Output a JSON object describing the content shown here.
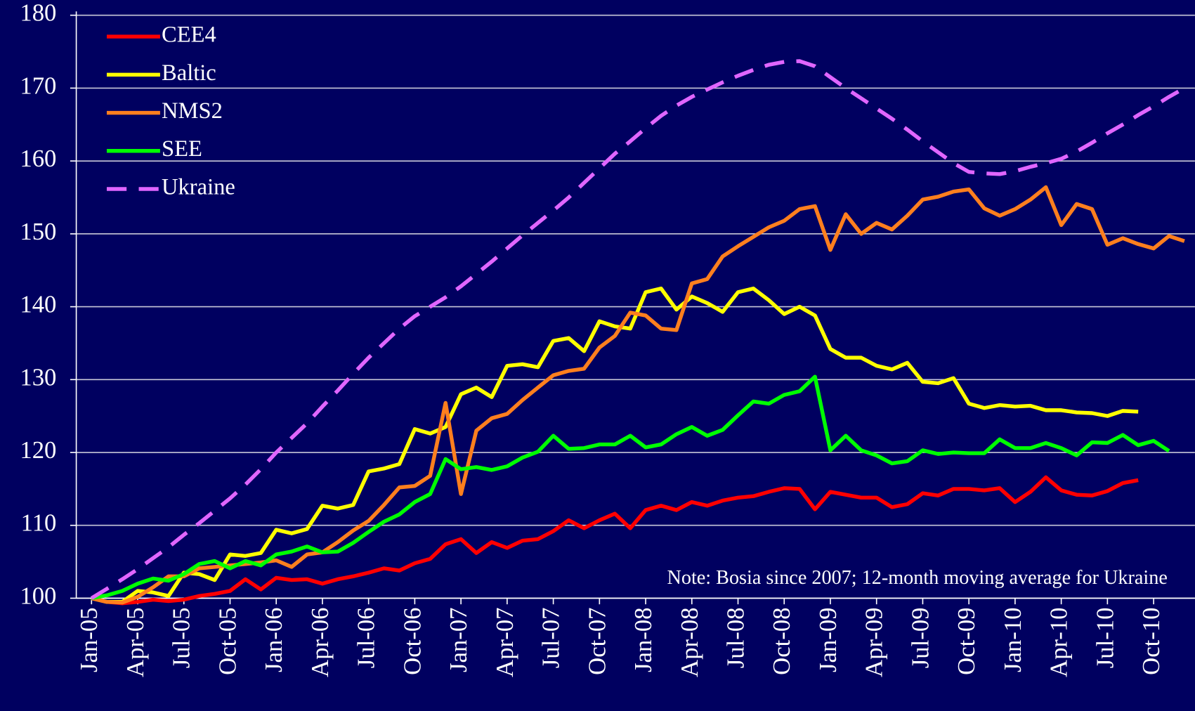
{
  "chart_data": {
    "type": "line",
    "note": "Note: Bosia since 2007; 12-month moving average for Ukraine",
    "categories": [
      "Jan-05",
      null,
      null,
      "Apr-05",
      null,
      null,
      "Jul-05",
      null,
      null,
      "Oct-05",
      null,
      null,
      "Jan-06",
      null,
      null,
      "Apr-06",
      null,
      null,
      "Jul-06",
      null,
      null,
      "Oct-06",
      null,
      null,
      "Jan-07",
      null,
      null,
      "Apr-07",
      null,
      null,
      "Jul-07",
      null,
      null,
      "Oct-07",
      null,
      null,
      "Jan-08",
      null,
      null,
      "Apr-08",
      null,
      null,
      "Jul-08",
      null,
      null,
      "Oct-08",
      null,
      null,
      "Jan-09",
      null,
      null,
      "Apr-09",
      null,
      null,
      "Jul-09",
      null,
      null,
      "Oct-09",
      null,
      null,
      "Jan-10",
      null,
      null,
      "Apr-10",
      null,
      null,
      "Jul-10",
      null,
      null,
      "Oct-10",
      null,
      null
    ],
    "ylim": [
      100,
      180
    ],
    "yticks": [
      100,
      110,
      120,
      130,
      140,
      150,
      160,
      170,
      180
    ],
    "grid": true,
    "legend": "upper left",
    "series": [
      {
        "name": "CEE4",
        "color": "#ff0000",
        "style": "solid",
        "values": [
          100,
          99.5,
          99.3,
          99.5,
          99.8,
          99.6,
          99.8,
          100.3,
          100.6,
          101,
          102.6,
          101.2,
          102.8,
          102.5,
          102.6,
          102,
          102.6,
          103,
          103.5,
          104.1,
          103.8,
          104.8,
          105.4,
          107.4,
          108.1,
          106.2,
          107.7,
          106.9,
          107.9,
          108.1,
          109.2,
          110.7,
          109.6,
          110.7,
          111.6,
          109.6,
          112.1,
          112.7,
          112.1,
          113.2,
          112.7,
          113.4,
          113.8,
          114,
          114.6,
          115.1,
          115,
          112.2,
          114.6,
          114.2,
          113.8,
          113.8,
          112.5,
          112.9,
          114.4,
          114.1,
          115,
          115,
          114.8,
          115.1,
          113.2,
          114.6,
          116.6,
          114.8,
          114.2,
          114.1,
          114.7,
          115.8,
          116.2,
          null,
          null,
          null
        ]
      },
      {
        "name": "Baltic",
        "color": "#ffff00",
        "style": "solid",
        "values": [
          100,
          99.5,
          99.5,
          101,
          100.8,
          100.3,
          103.5,
          103.3,
          102.5,
          106,
          105.8,
          106.2,
          109.4,
          108.9,
          109.5,
          112.7,
          112.3,
          112.8,
          117.4,
          117.8,
          118.4,
          123.2,
          122.6,
          123.5,
          128,
          128.9,
          127.6,
          131.9,
          132.1,
          131.7,
          135.3,
          135.7,
          133.9,
          138,
          137.3,
          137,
          142,
          142.5,
          139.6,
          141.4,
          140.5,
          139.3,
          142,
          142.5,
          140.9,
          139,
          140,
          138.8,
          134.2,
          133,
          133,
          131.9,
          131.4,
          132.3,
          129.7,
          129.5,
          130.2,
          126.7,
          126.1,
          126.5,
          126.3,
          126.4,
          125.8,
          125.8,
          125.5,
          125.4,
          125,
          125.7,
          125.6,
          null,
          null,
          null
        ]
      },
      {
        "name": "NMS2",
        "color": "#ff7f1e",
        "style": "solid",
        "values": [
          100,
          99.5,
          99.4,
          100.2,
          101.5,
          103,
          103,
          104.1,
          104.3,
          104.5,
          104.7,
          104.9,
          105.2,
          104.3,
          106,
          106.3,
          107.7,
          109.3,
          110.6,
          112.8,
          115.2,
          115.4,
          116.8,
          126.8,
          114.3,
          123,
          124.7,
          125.3,
          127.2,
          128.9,
          130.6,
          131.2,
          131.5,
          134.4,
          136,
          139.2,
          138.8,
          137,
          136.8,
          143.2,
          143.8,
          146.9,
          148.3,
          149.6,
          150.9,
          151.8,
          153.4,
          153.8,
          147.8,
          152.7,
          150,
          151.5,
          150.6,
          152.5,
          154.7,
          155.1,
          155.8,
          156.1,
          153.5,
          152.5,
          153.4,
          154.7,
          156.4,
          151.2,
          154.1,
          153.4,
          148.5,
          149.4,
          148.6,
          148,
          149.7,
          149
        ]
      },
      {
        "name": "SEE",
        "color": "#00ff00",
        "style": "solid",
        "values": [
          100,
          100.4,
          101,
          102,
          102.7,
          102.4,
          103.3,
          104.7,
          105.1,
          104.1,
          105.1,
          104.5,
          106,
          106.4,
          107.1,
          106.3,
          106.4,
          107.6,
          109.1,
          110.5,
          111.5,
          113.2,
          114.3,
          119.1,
          117.7,
          118,
          117.6,
          118.1,
          119.3,
          120.1,
          122.3,
          120.5,
          120.6,
          121.1,
          121.1,
          122.3,
          120.7,
          121.1,
          122.5,
          123.5,
          122.3,
          123.1,
          125.1,
          127,
          126.7,
          127.9,
          128.4,
          130.4,
          120.3,
          122.3,
          120.3,
          119.6,
          118.5,
          118.8,
          120.3,
          119.8,
          120,
          119.9,
          119.9,
          121.8,
          120.6,
          120.6,
          121.3,
          120.6,
          119.6,
          121.4,
          121.3,
          122.4,
          121,
          121.6,
          120.2,
          null
        ]
      },
      {
        "name": "Ukraine",
        "color": "#e066ff",
        "style": "dashed",
        "values": [
          100,
          101.3,
          102.6,
          104,
          105.5,
          107,
          108.7,
          110.3,
          112,
          113.7,
          115.6,
          117.7,
          120,
          122,
          124,
          126.3,
          128.5,
          130.8,
          133,
          135,
          137,
          138.7,
          140,
          141.3,
          142.8,
          144.5,
          146.2,
          148,
          149.8,
          151.5,
          153.2,
          155,
          157,
          159,
          161,
          162.7,
          164.5,
          166.2,
          167.6,
          168.8,
          169.8,
          170.8,
          171.7,
          172.5,
          173.2,
          173.6,
          173.7,
          173,
          171.5,
          170,
          168.6,
          167.2,
          165.8,
          164.3,
          162.7,
          161.2,
          159.7,
          158.5,
          158.3,
          158.2,
          158.6,
          159.2,
          159.7,
          160.3,
          161.3,
          162.5,
          163.8,
          165,
          166.3,
          167.5,
          168.8,
          170
        ]
      }
    ]
  }
}
